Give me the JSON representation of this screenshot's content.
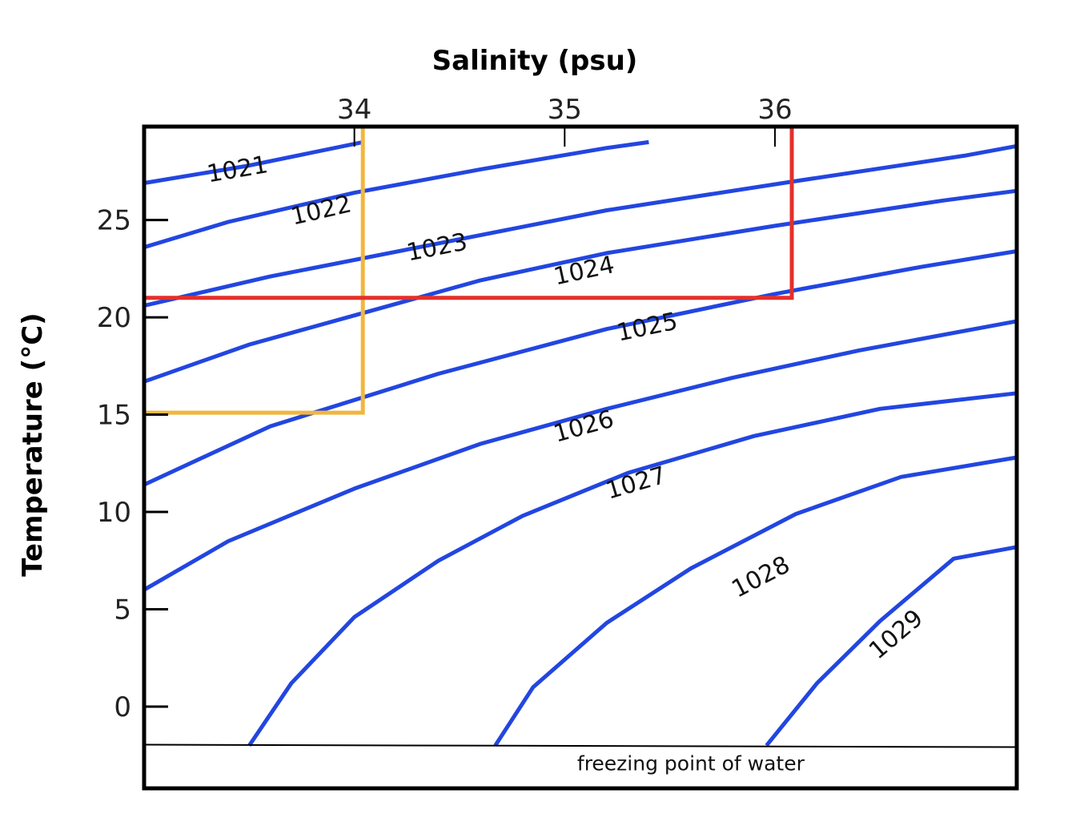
{
  "chart_data": {
    "type": "line",
    "title": "",
    "xlabel": "Salinity (psu)",
    "ylabel": "Temperature (°C)",
    "xlim": [
      33.0,
      37.15
    ],
    "ylim": [
      -4.2,
      29.8
    ],
    "x_ticks": [
      34,
      35,
      36
    ],
    "y_ticks": [
      0,
      5,
      10,
      15,
      20,
      25
    ],
    "grid": false,
    "colors": {
      "isopycnal": "#2246e0",
      "orange_marker": "#f1b63e",
      "red_marker": "#e4302a",
      "frame": "#000000"
    },
    "series": [
      {
        "name": "1021",
        "label": "1021",
        "x": [
          33.0,
          33.5,
          34.04
        ],
        "y": [
          26.9,
          27.8,
          29.0
        ]
      },
      {
        "name": "1022",
        "label": "1022",
        "x": [
          33.0,
          33.4,
          34.0,
          34.6,
          35.2,
          35.4
        ],
        "y": [
          23.6,
          24.9,
          26.4,
          27.6,
          28.7,
          29.0
        ]
      },
      {
        "name": "1023",
        "label": "1023",
        "x": [
          33.0,
          33.6,
          34.4,
          35.2,
          36.1,
          36.9,
          37.15
        ],
        "y": [
          20.6,
          22.1,
          23.8,
          25.5,
          27.0,
          28.3,
          28.8
        ]
      },
      {
        "name": "1024",
        "label": "1024",
        "x": [
          33.0,
          33.5,
          34.0,
          34.6,
          35.2,
          36.0,
          36.8,
          37.15
        ],
        "y": [
          16.7,
          18.6,
          20.1,
          21.9,
          23.3,
          24.7,
          26.0,
          26.5
        ]
      },
      {
        "name": "1025",
        "label": "1025",
        "x": [
          33.0,
          33.6,
          34.4,
          35.2,
          36.0,
          36.7,
          37.15
        ],
        "y": [
          11.4,
          14.4,
          17.1,
          19.4,
          21.2,
          22.6,
          23.4
        ]
      },
      {
        "name": "1026",
        "label": "1026",
        "x": [
          33.0,
          33.4,
          34.0,
          34.6,
          35.2,
          35.8,
          36.4,
          37.15
        ],
        "y": [
          6.0,
          8.5,
          11.2,
          13.5,
          15.3,
          16.9,
          18.3,
          19.8
        ]
      },
      {
        "name": "1027",
        "label": "1027",
        "x": [
          33.5,
          33.7,
          34.0,
          34.4,
          34.8,
          35.3,
          35.9,
          36.5,
          37.15
        ],
        "y": [
          -2.0,
          1.2,
          4.6,
          7.5,
          9.8,
          12.0,
          13.9,
          15.3,
          16.1
        ]
      },
      {
        "name": "1028",
        "label": "1028",
        "x": [
          34.67,
          34.85,
          35.2,
          35.6,
          36.1,
          36.6,
          37.15
        ],
        "y": [
          -2.0,
          1.0,
          4.3,
          7.1,
          9.9,
          11.8,
          12.8
        ]
      },
      {
        "name": "1029",
        "label": "1029",
        "x": [
          35.96,
          36.2,
          36.5,
          36.85,
          37.15
        ],
        "y": [
          -2.0,
          1.2,
          4.4,
          7.6,
          8.2
        ]
      }
    ],
    "annotations": [
      {
        "text": "freezing point of water",
        "y": -2.0
      }
    ],
    "reference_lines": [
      {
        "name": "orange",
        "points": [
          [
            34.04,
            29.8
          ],
          [
            34.04,
            15.1
          ],
          [
            33.0,
            15.1
          ]
        ]
      },
      {
        "name": "red",
        "points": [
          [
            33.0,
            21.0
          ],
          [
            36.08,
            21.0
          ],
          [
            36.08,
            29.8
          ]
        ]
      }
    ]
  }
}
